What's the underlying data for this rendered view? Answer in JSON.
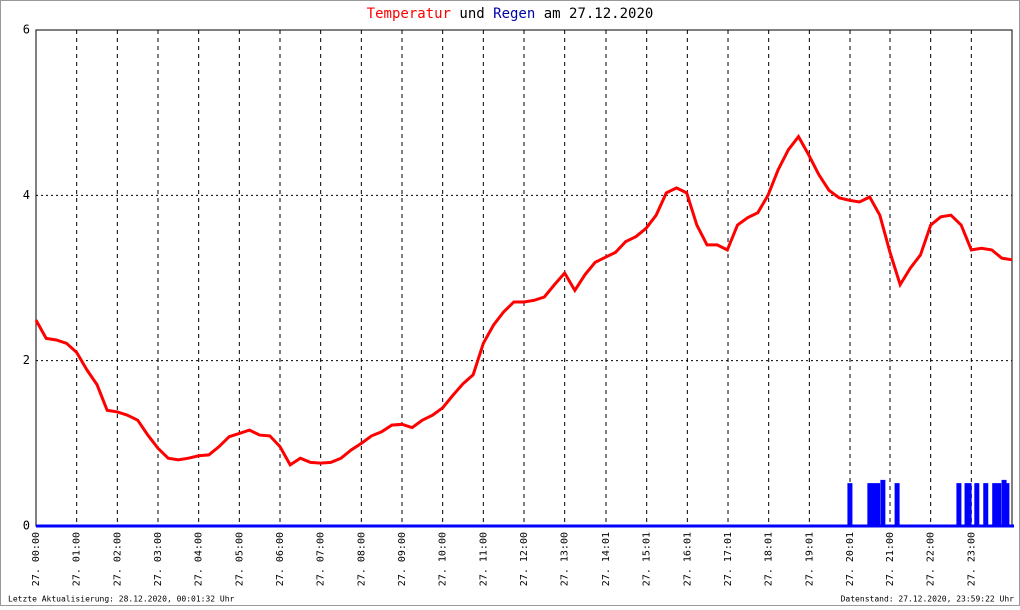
{
  "chart_data": {
    "type": "line",
    "title": [
      "und",
      "am 27.12.2020"
    ],
    "xlim": [
      0,
      24
    ],
    "ylim": [
      0,
      6
    ],
    "yticks": [
      0,
      2,
      4,
      6
    ],
    "grid": true,
    "xticks": [
      {
        "value": 0,
        "label": "27. 00:00"
      },
      {
        "value": 1,
        "label": "27. 01:00"
      },
      {
        "value": 2,
        "label": "27. 02:00"
      },
      {
        "value": 3,
        "label": "27. 03:00"
      },
      {
        "value": 4,
        "label": "27. 04:00"
      },
      {
        "value": 5,
        "label": "27. 05:00"
      },
      {
        "value": 6,
        "label": "27. 06:00"
      },
      {
        "value": 7,
        "label": "27. 07:00"
      },
      {
        "value": 8,
        "label": "27. 08:00"
      },
      {
        "value": 9,
        "label": "27. 09:00"
      },
      {
        "value": 10,
        "label": "27. 10:00"
      },
      {
        "value": 11,
        "label": "27. 11:00"
      },
      {
        "value": 12,
        "label": "27. 12:00"
      },
      {
        "value": 13,
        "label": "27. 13:00"
      },
      {
        "value": 14.0167,
        "label": "27. 14:01"
      },
      {
        "value": 15.0167,
        "label": "27. 15:01"
      },
      {
        "value": 16.0167,
        "label": "27. 16:01"
      },
      {
        "value": 17.0167,
        "label": "27. 17:01"
      },
      {
        "value": 18.0167,
        "label": "27. 18:01"
      },
      {
        "value": 19.0167,
        "label": "27. 19:01"
      },
      {
        "value": 20.0167,
        "label": "27. 20:01"
      },
      {
        "value": 21,
        "label": "27. 21:00"
      },
      {
        "value": 22,
        "label": "27. 22:00"
      },
      {
        "value": 23,
        "label": "27. 23:00"
      }
    ],
    "series": [
      {
        "name": "Temperatur",
        "color": "#ff0000",
        "x": [
          0,
          0.25,
          0.5,
          0.75,
          1,
          1.25,
          1.5,
          1.75,
          2,
          2.25,
          2.5,
          2.75,
          3,
          3.25,
          3.5,
          3.75,
          4,
          4.25,
          4.5,
          4.75,
          5,
          5.25,
          5.5,
          5.75,
          6,
          6.25,
          6.5,
          6.75,
          7,
          7.25,
          7.5,
          7.75,
          8,
          8.25,
          8.5,
          8.75,
          9,
          9.25,
          9.5,
          9.75,
          10,
          10.25,
          10.5,
          10.75,
          11,
          11.25,
          11.5,
          11.75,
          12,
          12.25,
          12.5,
          12.75,
          13,
          13.25,
          13.5,
          13.75,
          14,
          14.25,
          14.5,
          14.75,
          15,
          15.25,
          15.5,
          15.75,
          16,
          16.25,
          16.5,
          16.75,
          17,
          17.25,
          17.5,
          17.75,
          18,
          18.25,
          18.5,
          18.75,
          19,
          19.25,
          19.5,
          19.75,
          20,
          20.25,
          20.5,
          20.75,
          21,
          21.25,
          21.5,
          21.75,
          22,
          22.25,
          22.5,
          22.75,
          23,
          23.25,
          23.5,
          23.75,
          24
        ],
        "values": [
          2.49,
          2.27,
          2.25,
          2.21,
          2.1,
          1.89,
          1.71,
          1.4,
          1.38,
          1.34,
          1.28,
          1.1,
          0.94,
          0.82,
          0.8,
          0.82,
          0.85,
          0.86,
          0.96,
          1.08,
          1.12,
          1.16,
          1.1,
          1.09,
          0.96,
          0.74,
          0.82,
          0.77,
          0.76,
          0.77,
          0.82,
          0.92,
          1.0,
          1.09,
          1.14,
          1.22,
          1.23,
          1.19,
          1.28,
          1.34,
          1.43,
          1.58,
          1.72,
          1.83,
          2.21,
          2.43,
          2.59,
          2.71,
          2.71,
          2.73,
          2.77,
          2.92,
          3.06,
          2.85,
          3.04,
          3.19,
          3.25,
          3.31,
          3.44,
          3.5,
          3.6,
          3.76,
          4.03,
          4.09,
          4.03,
          3.64,
          3.4,
          3.4,
          3.34,
          3.64,
          3.73,
          3.79,
          4.0,
          4.31,
          4.55,
          4.71,
          4.49,
          4.25,
          4.06,
          3.97,
          3.94,
          3.92,
          3.98,
          3.76,
          3.31,
          2.92,
          3.12,
          3.28,
          3.64,
          3.74,
          3.76,
          3.64,
          3.34,
          3.36,
          3.34,
          3.24,
          3.22
        ]
      },
      {
        "name": "Regen",
        "color": "#0000ff",
        "x": [
          0,
          19.99,
          20.48,
          20.6,
          20.67,
          20.8,
          21.15,
          22.67,
          22.87,
          22.92,
          23.11,
          23.33,
          23.55,
          23.65,
          23.78,
          23.85,
          24
        ],
        "values": [
          0,
          0.5,
          0.5,
          0.5,
          0.5,
          0.54,
          0.5,
          0.5,
          0.5,
          0.5,
          0.5,
          0.5,
          0.5,
          0.5,
          0.54,
          0.5,
          0
        ]
      }
    ],
    "footer": [
      "Letzte Aktualisierung: 28.12.2020, 00:01:32 Uhr",
      "Datenstand: 27.12.2020, 23:59:22 Uhr"
    ]
  }
}
